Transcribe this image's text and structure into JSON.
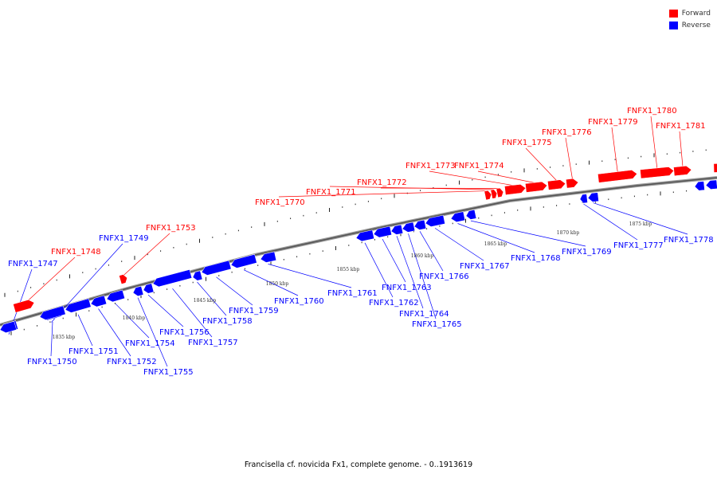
{
  "caption": "Francisella cf. novicida Fx1, complete genome. - 0..1913619",
  "legend": [
    {
      "label": "Forward",
      "color": "#ff0000"
    },
    {
      "label": "Reverse",
      "color": "#0000ff"
    }
  ],
  "colors": {
    "forward": "#ff0000",
    "reverse": "#0000ff",
    "backbone": "#777777"
  },
  "scale_labels": [
    "1835 kbp",
    "1840 kbp",
    "1845 kbp",
    "1850 kbp",
    "1855 kbp",
    "1860 kbp",
    "1865 kbp",
    "1870 kbp",
    "1875 kbp"
  ],
  "genes": [
    {
      "name": "FNFX1_1747",
      "strand": "reverse"
    },
    {
      "name": "FNFX1_1748",
      "strand": "forward"
    },
    {
      "name": "FNFX1_1749",
      "strand": "reverse"
    },
    {
      "name": "FNFX1_1750",
      "strand": "reverse"
    },
    {
      "name": "FNFX1_1751",
      "strand": "reverse"
    },
    {
      "name": "FNFX1_1752",
      "strand": "reverse"
    },
    {
      "name": "FNFX1_1753",
      "strand": "forward"
    },
    {
      "name": "FNFX1_1754",
      "strand": "reverse"
    },
    {
      "name": "FNFX1_1755",
      "strand": "reverse"
    },
    {
      "name": "FNFX1_1756",
      "strand": "reverse"
    },
    {
      "name": "FNFX1_1757",
      "strand": "reverse"
    },
    {
      "name": "FNFX1_1758",
      "strand": "reverse"
    },
    {
      "name": "FNFX1_1759",
      "strand": "reverse"
    },
    {
      "name": "FNFX1_1760",
      "strand": "reverse"
    },
    {
      "name": "FNFX1_1761",
      "strand": "reverse"
    },
    {
      "name": "FNFX1_1762",
      "strand": "reverse"
    },
    {
      "name": "FNFX1_1763",
      "strand": "reverse"
    },
    {
      "name": "FNFX1_1764",
      "strand": "reverse"
    },
    {
      "name": "FNFX1_1765",
      "strand": "reverse"
    },
    {
      "name": "FNFX1_1766",
      "strand": "reverse"
    },
    {
      "name": "FNFX1_1767",
      "strand": "reverse"
    },
    {
      "name": "FNFX1_1768",
      "strand": "reverse"
    },
    {
      "name": "FNFX1_1769",
      "strand": "reverse"
    },
    {
      "name": "FNFX1_1770",
      "strand": "forward"
    },
    {
      "name": "FNFX1_1771",
      "strand": "forward"
    },
    {
      "name": "FNFX1_1772",
      "strand": "forward"
    },
    {
      "name": "FNFX1_1773",
      "strand": "forward"
    },
    {
      "name": "FNFX1_1774",
      "strand": "forward"
    },
    {
      "name": "FNFX1_1775",
      "strand": "forward"
    },
    {
      "name": "FNFX1_1776",
      "strand": "forward"
    },
    {
      "name": "FNFX1_1777",
      "strand": "reverse"
    },
    {
      "name": "FNFX1_1778",
      "strand": "reverse"
    },
    {
      "name": "FNFX1_1779",
      "strand": "forward"
    },
    {
      "name": "FNFX1_1780",
      "strand": "forward"
    },
    {
      "name": "FNFX1_1781",
      "strand": "forward"
    }
  ]
}
